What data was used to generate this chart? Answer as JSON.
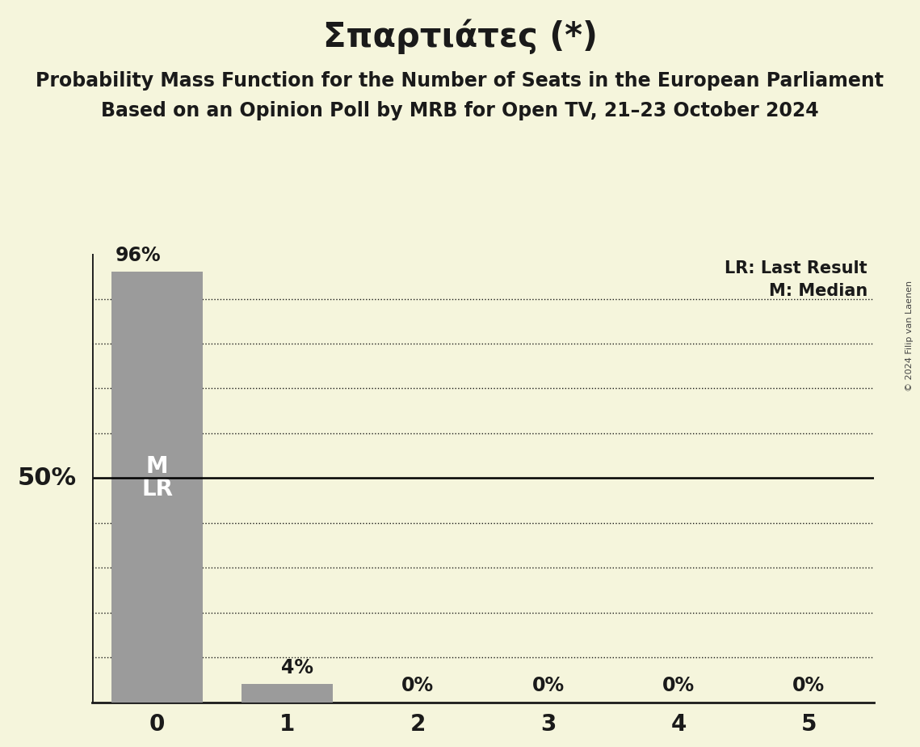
{
  "title": "Σπαρτιάτες (*)",
  "subtitle1": "Probability Mass Function for the Number of Seats in the European Parliament",
  "subtitle2": "Based on an Opinion Poll by MRB for Open TV, 21–23 October 2024",
  "copyright": "© 2024 Filip van Laenen",
  "categories": [
    0,
    1,
    2,
    3,
    4,
    5
  ],
  "values": [
    0.96,
    0.04,
    0.0,
    0.0,
    0.0,
    0.0
  ],
  "labels": [
    "96%",
    "4%",
    "0%",
    "0%",
    "0%",
    "0%"
  ],
  "bar_color": "#9B9B9B",
  "background_color": "#f5f5dc",
  "text_color": "#1a1a1a",
  "bar_label_color_inside": "#ffffff",
  "bar_label_color_outside": "#1a1a1a",
  "fifty_pct_line_y": 0.5,
  "legend_lr": "LR: Last Result",
  "legend_m": "M: Median",
  "ylabel_50": "50%",
  "ylim": [
    0,
    1.0
  ],
  "xlim": [
    -0.5,
    5.5
  ],
  "title_fontsize": 30,
  "subtitle_fontsize": 17,
  "tick_fontsize": 20,
  "bar_text_fontsize": 17,
  "inside_bar_fontsize": 20,
  "legend_fontsize": 15,
  "ylabel_fontsize": 22,
  "copyright_fontsize": 8,
  "dotted_grid_levels": [
    0.1,
    0.2,
    0.3,
    0.4,
    0.6,
    0.7,
    0.8,
    0.9
  ],
  "solid_line_y": 0.5
}
